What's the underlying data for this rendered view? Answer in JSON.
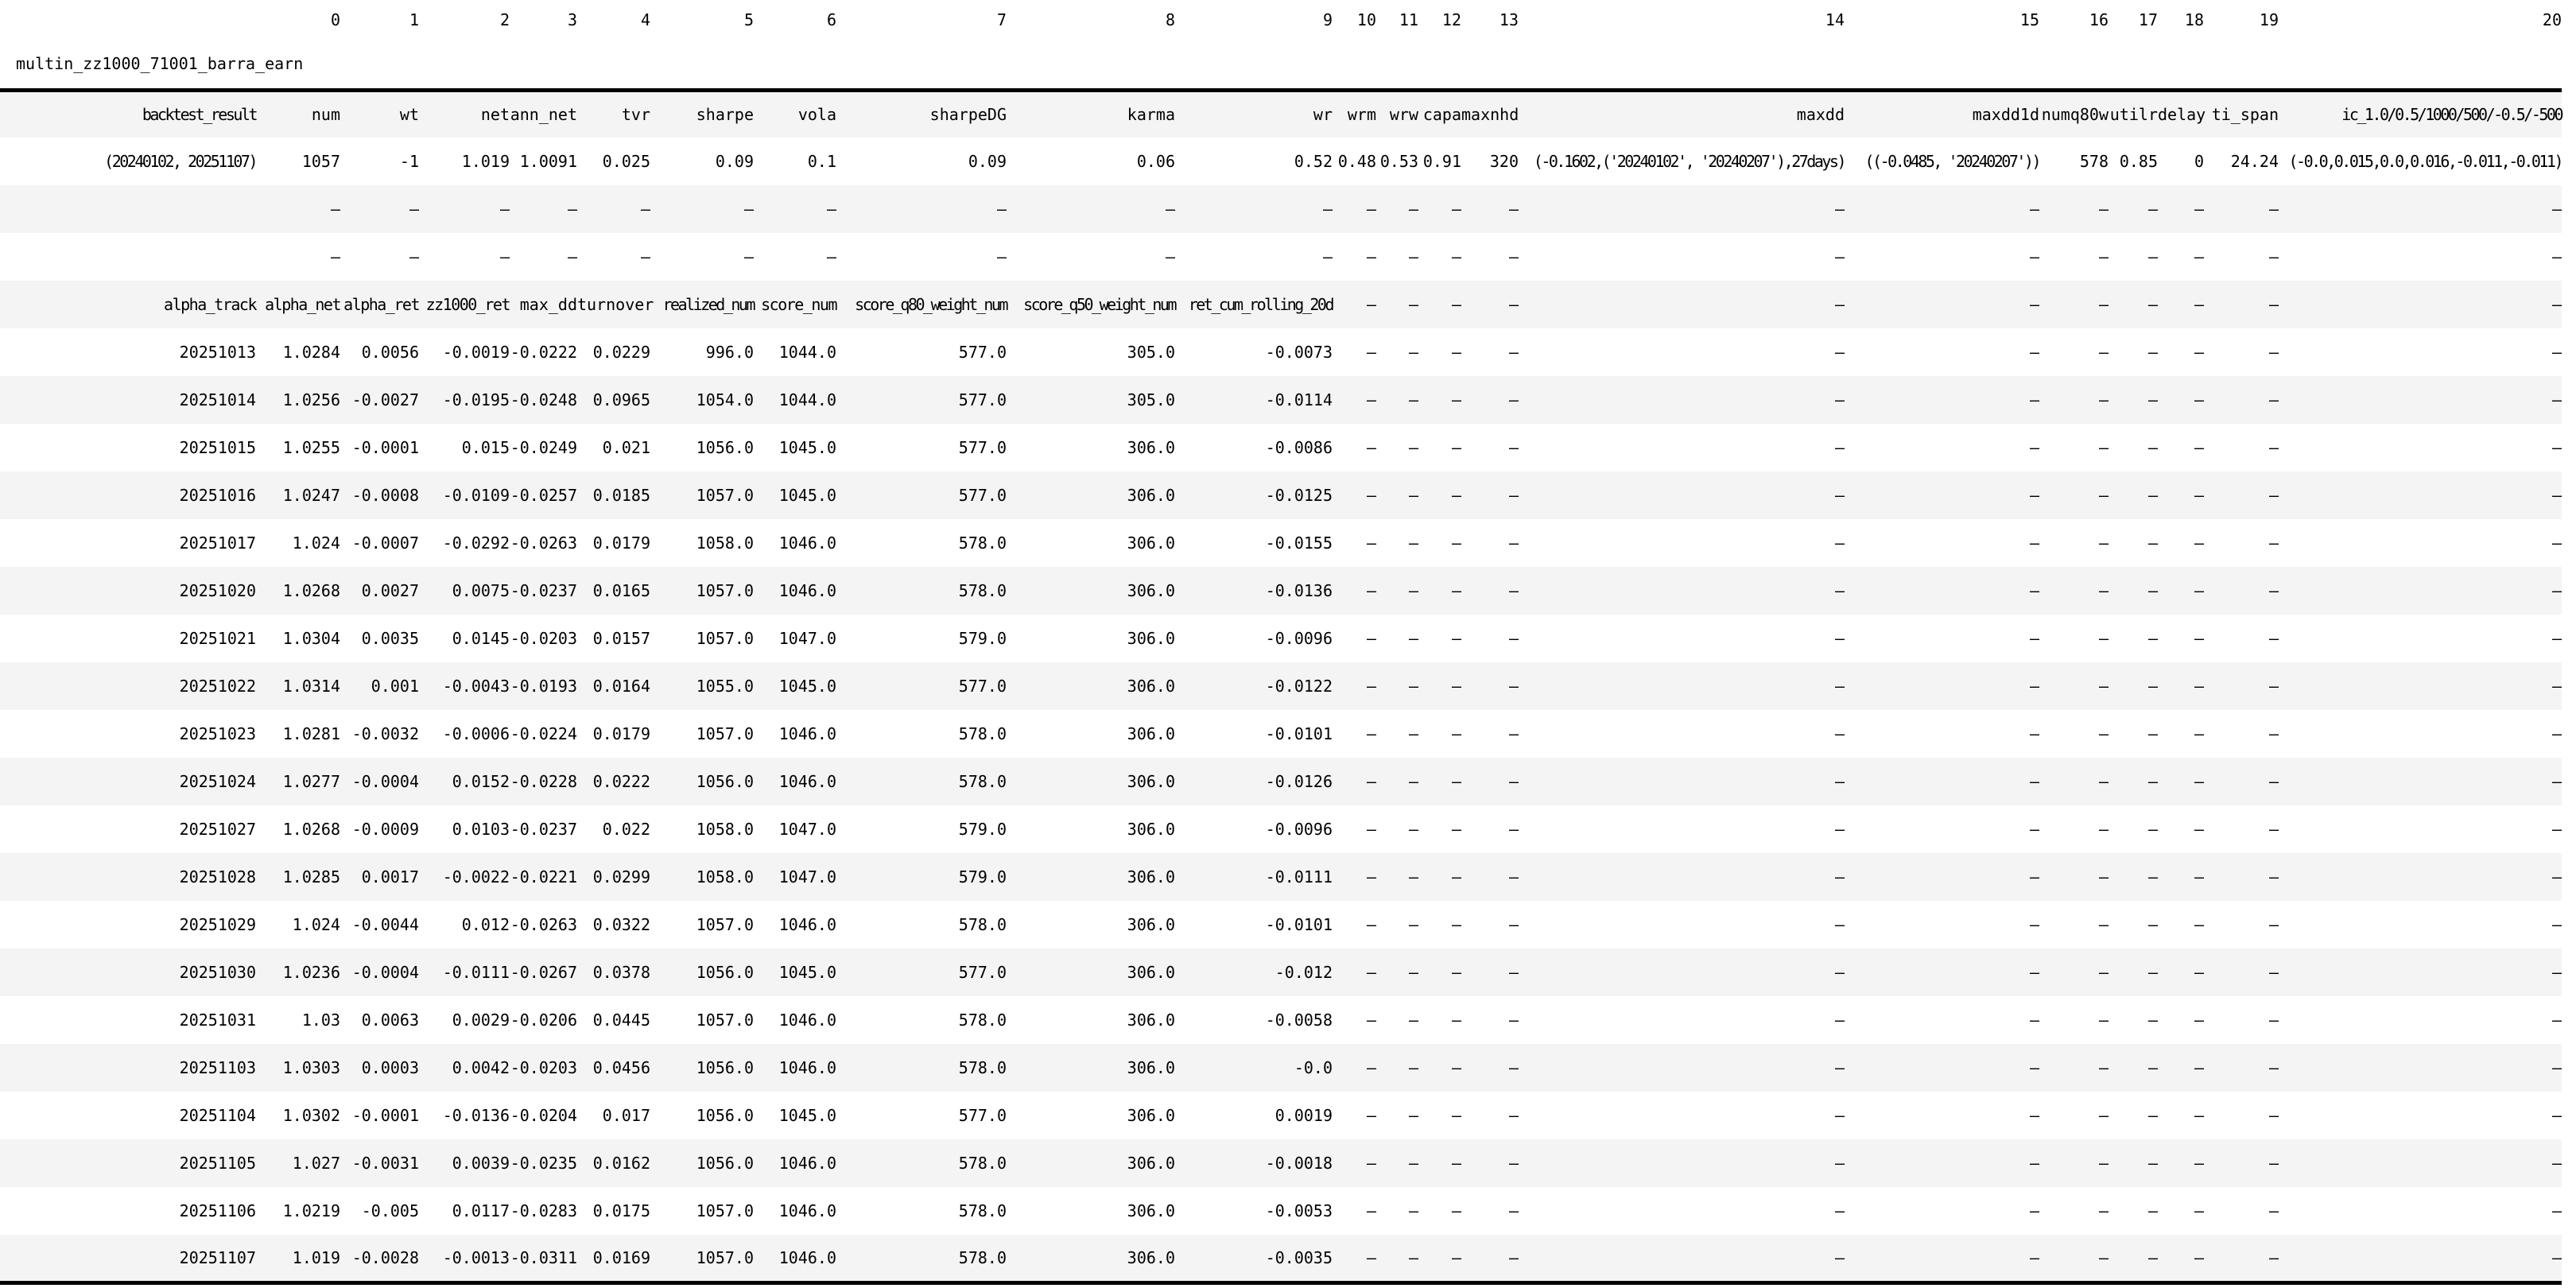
{
  "title": "multin_zz1000_71001_barra_earn",
  "colors": {
    "stripe_gray": "#f4f4f4",
    "row_white": "#ffffff",
    "rule_black": "#000000",
    "text": "#000000"
  },
  "column_index_labels": [
    "",
    "0",
    "1",
    "2",
    "3",
    "4",
    "5",
    "6",
    "7",
    "8",
    "9",
    "10",
    "11",
    "12",
    "13",
    "14",
    "15",
    "16",
    "17",
    "18",
    "19",
    "20"
  ],
  "table": {
    "rows": [
      [
        "backtest_result",
        "num",
        "wt",
        "net",
        "ann_net",
        "tvr",
        "sharpe",
        "vola",
        "sharpeDG",
        "karma",
        "wr",
        "wrm",
        "wrw",
        "capa",
        "maxnhd",
        "maxdd",
        "maxdd1d",
        "numq80w",
        "utilr",
        "delay",
        "ti_span",
        "ic_1.0/0.5/1000/500/-0.5/-500"
      ],
      [
        "(20240102, 20251107)",
        "1057",
        "-1",
        "1.019",
        "1.0091",
        "0.025",
        "0.09",
        "0.1",
        "0.09",
        "0.06",
        "0.52",
        "0.48",
        "0.53",
        "0.91",
        "320",
        "(-0.1602,('20240102', '20240207'),27days)",
        "((-0.0485, '20240207'))",
        "578",
        "0.85",
        "0",
        "24.24",
        "(-0.0,0.015,0.0,0.016,-0.011,-0.011)"
      ],
      [
        "",
        "—",
        "—",
        "—",
        "—",
        "—",
        "—",
        "—",
        "—",
        "—",
        "—",
        "—",
        "—",
        "—",
        "—",
        "—",
        "—",
        "—",
        "—",
        "—",
        "—",
        "—"
      ],
      [
        "",
        "—",
        "—",
        "—",
        "—",
        "—",
        "—",
        "—",
        "—",
        "—",
        "—",
        "—",
        "—",
        "—",
        "—",
        "—",
        "—",
        "—",
        "—",
        "—",
        "—",
        "—"
      ],
      [
        "alpha_track",
        "alpha_net",
        "alpha_ret",
        "zz1000_ret",
        "max_dd",
        "turnover",
        "realized_num",
        "score_num",
        "score_q80_weight_num",
        "score_q50_weight_num",
        "ret_cum_rolling_20d",
        "—",
        "—",
        "—",
        "—",
        "—",
        "—",
        "—",
        "—",
        "—",
        "—",
        "—"
      ],
      [
        "20251013",
        "1.0284",
        "0.0056",
        "-0.0019",
        "-0.0222",
        "0.0229",
        "996.0",
        "1044.0",
        "577.0",
        "305.0",
        "-0.0073",
        "—",
        "—",
        "—",
        "—",
        "—",
        "—",
        "—",
        "—",
        "—",
        "—",
        "—"
      ],
      [
        "20251014",
        "1.0256",
        "-0.0027",
        "-0.0195",
        "-0.0248",
        "0.0965",
        "1054.0",
        "1044.0",
        "577.0",
        "305.0",
        "-0.0114",
        "—",
        "—",
        "—",
        "—",
        "—",
        "—",
        "—",
        "—",
        "—",
        "—",
        "—"
      ],
      [
        "20251015",
        "1.0255",
        "-0.0001",
        "0.015",
        "-0.0249",
        "0.021",
        "1056.0",
        "1045.0",
        "577.0",
        "306.0",
        "-0.0086",
        "—",
        "—",
        "—",
        "—",
        "—",
        "—",
        "—",
        "—",
        "—",
        "—",
        "—"
      ],
      [
        "20251016",
        "1.0247",
        "-0.0008",
        "-0.0109",
        "-0.0257",
        "0.0185",
        "1057.0",
        "1045.0",
        "577.0",
        "306.0",
        "-0.0125",
        "—",
        "—",
        "—",
        "—",
        "—",
        "—",
        "—",
        "—",
        "—",
        "—",
        "—"
      ],
      [
        "20251017",
        "1.024",
        "-0.0007",
        "-0.0292",
        "-0.0263",
        "0.0179",
        "1058.0",
        "1046.0",
        "578.0",
        "306.0",
        "-0.0155",
        "—",
        "—",
        "—",
        "—",
        "—",
        "—",
        "—",
        "—",
        "—",
        "—",
        "—"
      ],
      [
        "20251020",
        "1.0268",
        "0.0027",
        "0.0075",
        "-0.0237",
        "0.0165",
        "1057.0",
        "1046.0",
        "578.0",
        "306.0",
        "-0.0136",
        "—",
        "—",
        "—",
        "—",
        "—",
        "—",
        "—",
        "—",
        "—",
        "—",
        "—"
      ],
      [
        "20251021",
        "1.0304",
        "0.0035",
        "0.0145",
        "-0.0203",
        "0.0157",
        "1057.0",
        "1047.0",
        "579.0",
        "306.0",
        "-0.0096",
        "—",
        "—",
        "—",
        "—",
        "—",
        "—",
        "—",
        "—",
        "—",
        "—",
        "—"
      ],
      [
        "20251022",
        "1.0314",
        "0.001",
        "-0.0043",
        "-0.0193",
        "0.0164",
        "1055.0",
        "1045.0",
        "577.0",
        "306.0",
        "-0.0122",
        "—",
        "—",
        "—",
        "—",
        "—",
        "—",
        "—",
        "—",
        "—",
        "—",
        "—"
      ],
      [
        "20251023",
        "1.0281",
        "-0.0032",
        "-0.0006",
        "-0.0224",
        "0.0179",
        "1057.0",
        "1046.0",
        "578.0",
        "306.0",
        "-0.0101",
        "—",
        "—",
        "—",
        "—",
        "—",
        "—",
        "—",
        "—",
        "—",
        "—",
        "—"
      ],
      [
        "20251024",
        "1.0277",
        "-0.0004",
        "0.0152",
        "-0.0228",
        "0.0222",
        "1056.0",
        "1046.0",
        "578.0",
        "306.0",
        "-0.0126",
        "—",
        "—",
        "—",
        "—",
        "—",
        "—",
        "—",
        "—",
        "—",
        "—",
        "—"
      ],
      [
        "20251027",
        "1.0268",
        "-0.0009",
        "0.0103",
        "-0.0237",
        "0.022",
        "1058.0",
        "1047.0",
        "579.0",
        "306.0",
        "-0.0096",
        "—",
        "—",
        "—",
        "—",
        "—",
        "—",
        "—",
        "—",
        "—",
        "—",
        "—"
      ],
      [
        "20251028",
        "1.0285",
        "0.0017",
        "-0.0022",
        "-0.0221",
        "0.0299",
        "1058.0",
        "1047.0",
        "579.0",
        "306.0",
        "-0.0111",
        "—",
        "—",
        "—",
        "—",
        "—",
        "—",
        "—",
        "—",
        "—",
        "—",
        "—"
      ],
      [
        "20251029",
        "1.024",
        "-0.0044",
        "0.012",
        "-0.0263",
        "0.0322",
        "1057.0",
        "1046.0",
        "578.0",
        "306.0",
        "-0.0101",
        "—",
        "—",
        "—",
        "—",
        "—",
        "—",
        "—",
        "—",
        "—",
        "—",
        "—"
      ],
      [
        "20251030",
        "1.0236",
        "-0.0004",
        "-0.0111",
        "-0.0267",
        "0.0378",
        "1056.0",
        "1045.0",
        "577.0",
        "306.0",
        "-0.012",
        "—",
        "—",
        "—",
        "—",
        "—",
        "—",
        "—",
        "—",
        "—",
        "—",
        "—"
      ],
      [
        "20251031",
        "1.03",
        "0.0063",
        "0.0029",
        "-0.0206",
        "0.0445",
        "1057.0",
        "1046.0",
        "578.0",
        "306.0",
        "-0.0058",
        "—",
        "—",
        "—",
        "—",
        "—",
        "—",
        "—",
        "—",
        "—",
        "—",
        "—"
      ],
      [
        "20251103",
        "1.0303",
        "0.0003",
        "0.0042",
        "-0.0203",
        "0.0456",
        "1056.0",
        "1046.0",
        "578.0",
        "306.0",
        "-0.0",
        "—",
        "—",
        "—",
        "—",
        "—",
        "—",
        "—",
        "—",
        "—",
        "—",
        "—"
      ],
      [
        "20251104",
        "1.0302",
        "-0.0001",
        "-0.0136",
        "-0.0204",
        "0.017",
        "1056.0",
        "1045.0",
        "577.0",
        "306.0",
        "0.0019",
        "—",
        "—",
        "—",
        "—",
        "—",
        "—",
        "—",
        "—",
        "—",
        "—",
        "—"
      ],
      [
        "20251105",
        "1.027",
        "-0.0031",
        "0.0039",
        "-0.0235",
        "0.0162",
        "1056.0",
        "1046.0",
        "578.0",
        "306.0",
        "-0.0018",
        "—",
        "—",
        "—",
        "—",
        "—",
        "—",
        "—",
        "—",
        "—",
        "—",
        "—"
      ],
      [
        "20251106",
        "1.0219",
        "-0.005",
        "0.0117",
        "-0.0283",
        "0.0175",
        "1057.0",
        "1046.0",
        "578.0",
        "306.0",
        "-0.0053",
        "—",
        "—",
        "—",
        "—",
        "—",
        "—",
        "—",
        "—",
        "—",
        "—",
        "—"
      ],
      [
        "20251107",
        "1.019",
        "-0.0028",
        "-0.0013",
        "-0.0311",
        "0.0169",
        "1057.0",
        "1046.0",
        "578.0",
        "306.0",
        "-0.0035",
        "—",
        "—",
        "—",
        "—",
        "—",
        "—",
        "—",
        "—",
        "—",
        "—",
        "—"
      ]
    ]
  }
}
